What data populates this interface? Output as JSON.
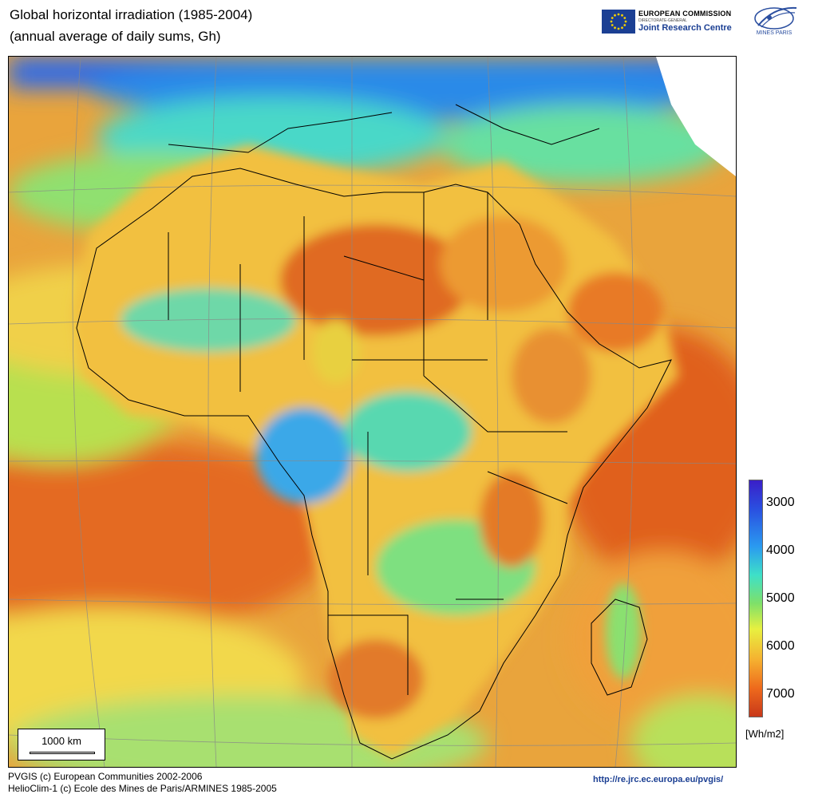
{
  "title": {
    "line1": "Global horizontal irradiation (1985-2004)",
    "line2": "(annual average of daily sums, Gh)"
  },
  "logos": {
    "ec_line1": "EUROPEAN COMMISSION",
    "ec_line2": "DIRECTORATE-GENERAL",
    "ec_line3": "Joint Research Centre",
    "mines": "MINES PARIS"
  },
  "map": {
    "region": "Africa",
    "scale_label": "1000 km"
  },
  "legend": {
    "ticks": [
      "3000",
      "4000",
      "5000",
      "6000",
      "7000"
    ],
    "unit": "[Wh/m2]",
    "colors": [
      "#3a1fc8",
      "#2a9af0",
      "#3ee0c8",
      "#e8f040",
      "#ee6a1c",
      "#c8381a"
    ]
  },
  "footer": {
    "line1": "PVGIS (c) European Communities 2002-2006",
    "line2": "HelioClim-1 (c) Ecole des Mines de Paris/ARMINES 1985-2005",
    "url": "http://re.jrc.ec.europa.eu/pvgis/"
  }
}
